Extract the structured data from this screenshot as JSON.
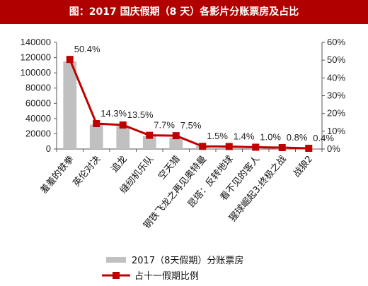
{
  "header": {
    "title": "图：2017 国庆假期（8 天）各影片分账票房及占比",
    "background_color": "#b10000"
  },
  "chart_data": {
    "type": "bar",
    "title": "图：2017 国庆假期（8 天）各影片分账票房及占比",
    "categories": [
      "羞羞的铁拳",
      "英伦对决",
      "追龙",
      "缝纫机乐队",
      "空天猎",
      "钢铁飞龙之再见奥特曼",
      "昆塔：反转地球",
      "看不见的客人",
      "猩球崛起3:终极之战",
      "战狼2"
    ],
    "series": [
      {
        "name": "2017（8天假期）分账票房",
        "type": "bar",
        "axis": "left",
        "color": "#c0c0c0",
        "values": [
          115000,
          32000,
          30000,
          17000,
          15000,
          4000,
          3400,
          2700,
          2000,
          1200
        ]
      },
      {
        "name": "占十一假期比例",
        "type": "line",
        "axis": "right",
        "color": "#c00000",
        "values": [
          50.4,
          14.3,
          13.5,
          7.7,
          7.5,
          1.5,
          1.4,
          1.0,
          0.8,
          0.4
        ],
        "labels": [
          "50.4%",
          "14.3%",
          "13.5%",
          "7.7%",
          "7.5%",
          "1.5%",
          "1.4%",
          "1.0%",
          "0.8%",
          "0.4%"
        ]
      }
    ],
    "ylim_left": [
      0,
      140000
    ],
    "yticks_left": [
      "0",
      "20000",
      "40000",
      "60000",
      "80000",
      "100000",
      "120000",
      "140000"
    ],
    "ylim_right": [
      0,
      60
    ],
    "yticks_right": [
      "0%",
      "10%",
      "20%",
      "30%",
      "40%",
      "50%",
      "60%"
    ],
    "grid": false,
    "legend_position": "bottom"
  }
}
